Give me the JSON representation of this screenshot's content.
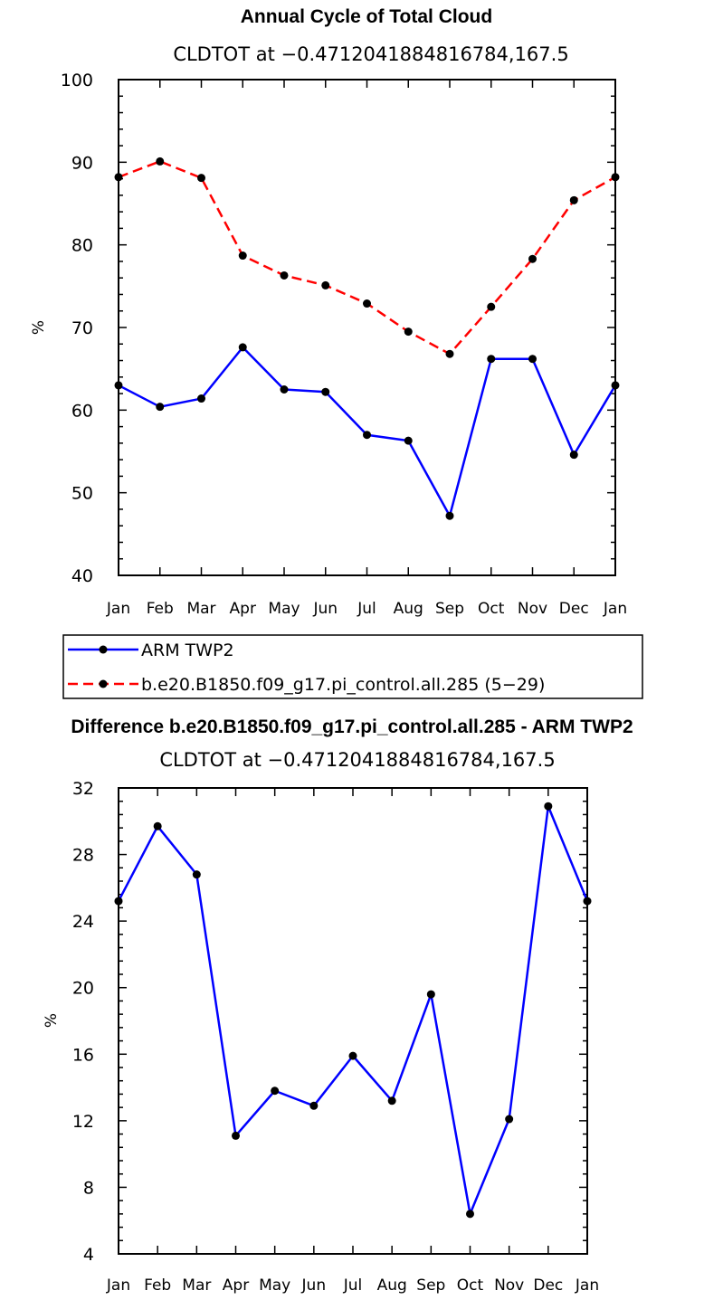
{
  "chart_data": [
    {
      "type": "line",
      "title": "Annual Cycle of Total Cloud",
      "subtitle": "CLDTOT at −0.4712041884816784,167.5",
      "ylabel": "%",
      "categories": [
        "Jan",
        "Feb",
        "Mar",
        "Apr",
        "May",
        "Jun",
        "Jul",
        "Aug",
        "Sep",
        "Oct",
        "Nov",
        "Dec",
        "Jan"
      ],
      "ylim": [
        40,
        100
      ],
      "yticks": [
        "40",
        "50",
        "60",
        "70",
        "80",
        "90",
        "100"
      ],
      "series": [
        {
          "name": "ARM TWP2",
          "color": "#0000ff",
          "dash": "solid",
          "values": [
            63.0,
            60.4,
            61.4,
            67.6,
            62.5,
            62.2,
            57.0,
            56.3,
            47.2,
            66.2,
            66.2,
            54.6,
            63.0
          ]
        },
        {
          "name": "b.e20.B1850.f09_g17.pi_control.all.285 (5−29)",
          "color": "#ff0000",
          "dash": "dashed",
          "values": [
            88.2,
            90.1,
            88.1,
            78.7,
            76.3,
            75.1,
            72.9,
            69.5,
            66.8,
            72.5,
            78.3,
            85.4,
            88.2
          ]
        }
      ],
      "legend": "below"
    },
    {
      "type": "line",
      "title": "Difference b.e20.B1850.f09_g17.pi_control.all.285 - ARM TWP2",
      "subtitle": "CLDTOT at −0.4712041884816784,167.5",
      "ylabel": "%",
      "categories": [
        "Jan",
        "Feb",
        "Mar",
        "Apr",
        "May",
        "Jun",
        "Jul",
        "Aug",
        "Sep",
        "Oct",
        "Nov",
        "Dec",
        "Jan"
      ],
      "ylim": [
        4,
        32
      ],
      "yticks": [
        "4",
        "8",
        "12",
        "16",
        "20",
        "24",
        "28",
        "32"
      ],
      "series": [
        {
          "color": "#0000ff",
          "dash": "solid",
          "values": [
            25.2,
            29.7,
            26.8,
            11.1,
            13.8,
            12.9,
            15.9,
            13.2,
            19.6,
            6.4,
            12.1,
            30.9,
            25.2
          ]
        }
      ]
    }
  ]
}
